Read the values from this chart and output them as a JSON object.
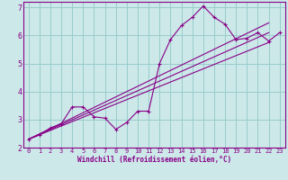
{
  "bg_color": "#cce8e8",
  "line_color": "#880088",
  "grid_color": "#99cccc",
  "xlabel": "Windchill (Refroidissement éolien,°C)",
  "xlim": [
    -0.5,
    23.5
  ],
  "ylim": [
    2.0,
    7.2
  ],
  "yticks": [
    2,
    3,
    4,
    5,
    6,
    7
  ],
  "xticks": [
    0,
    1,
    2,
    3,
    4,
    5,
    6,
    7,
    8,
    9,
    10,
    11,
    12,
    13,
    14,
    15,
    16,
    17,
    18,
    19,
    20,
    21,
    22,
    23
  ],
  "zigzag_x": [
    0,
    1,
    2,
    3,
    4,
    5,
    6,
    7,
    8,
    9,
    10,
    11,
    12,
    13,
    14,
    15,
    16,
    17,
    18,
    19,
    20,
    21,
    22,
    23
  ],
  "zigzag_y": [
    2.3,
    2.45,
    2.7,
    2.85,
    3.45,
    3.45,
    3.1,
    3.05,
    2.65,
    2.9,
    3.3,
    3.3,
    5.0,
    5.85,
    6.35,
    6.65,
    7.05,
    6.65,
    6.4,
    5.85,
    5.9,
    6.1,
    5.8,
    6.1
  ],
  "line1_x": [
    0,
    22
  ],
  "line1_y": [
    2.3,
    6.45
  ],
  "line2_x": [
    0,
    22
  ],
  "line2_y": [
    2.3,
    6.1
  ],
  "line3_x": [
    0,
    22
  ],
  "line3_y": [
    2.3,
    5.75
  ]
}
